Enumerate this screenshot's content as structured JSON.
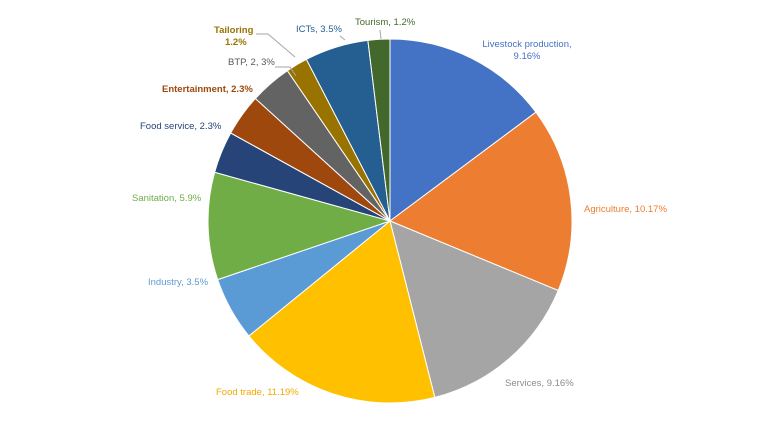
{
  "chart_data": {
    "type": "pie",
    "title": "",
    "slices": [
      {
        "label": "Livestock production, 9.16%",
        "value": 9.16,
        "color": "#4472C4",
        "label_color": "#4472C4",
        "label_bold": false
      },
      {
        "label": "Agriculture, 10.17%",
        "value": 10.17,
        "color": "#ED7D31",
        "label_color": "#ED7D31",
        "label_bold": false
      },
      {
        "label": "Services, 9.16%",
        "value": 9.16,
        "color": "#A5A5A5",
        "label_color": "#8C8C8C",
        "label_bold": false
      },
      {
        "label": "Food trade, 11.19%",
        "value": 11.19,
        "color": "#FFC000",
        "label_color": "#F2A900",
        "label_bold": false
      },
      {
        "label": "Industry, 3.5%",
        "value": 3.5,
        "color": "#5B9BD5",
        "label_color": "#5B9BD5",
        "label_bold": false
      },
      {
        "label": "Sanitation, 5.9%",
        "value": 5.9,
        "color": "#70AD47",
        "label_color": "#70AD47",
        "label_bold": false
      },
      {
        "label": "Food service, 2.3%",
        "value": 2.3,
        "color": "#264478",
        "label_color": "#264478",
        "label_bold": false
      },
      {
        "label": "Entertainment, 2.3%",
        "value": 2.3,
        "color": "#9E480E",
        "label_color": "#9E480E",
        "label_bold": true
      },
      {
        "label": "BTP, 2, 3%",
        "value": 2.3,
        "color": "#636363",
        "label_color": "#595959",
        "label_bold": false
      },
      {
        "label": "Tailoring\n1.2%",
        "value": 1.2,
        "color": "#997300",
        "label_color": "#997300",
        "label_bold": true
      },
      {
        "label": "ICTs, 3.5%",
        "value": 3.5,
        "color": "#255E91",
        "label_color": "#255E91",
        "label_bold": false
      },
      {
        "label": "Tourism, 1.2%",
        "value": 1.2,
        "color": "#43682B",
        "label_color": "#43682B",
        "label_bold": false
      }
    ]
  }
}
